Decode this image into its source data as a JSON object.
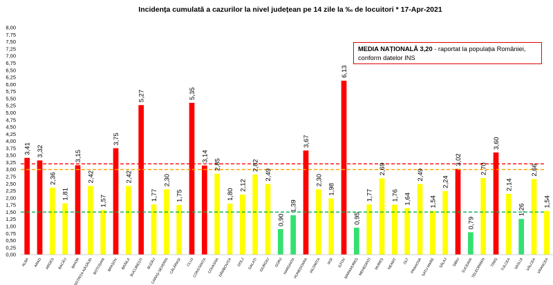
{
  "chart_data": {
    "type": "bar",
    "title": "Incidența cumulată a cazurilor la nivel județean pe 14 zile la ‰ de locuitori *  17-Apr-2021",
    "ylim": [
      0,
      8
    ],
    "yticks": [
      "0,00",
      "0,25",
      "0,50",
      "0,75",
      "1,00",
      "1,25",
      "1,50",
      "1,75",
      "2,00",
      "2,25",
      "2,50",
      "2,75",
      "3,00",
      "3,25",
      "3,50",
      "3,75",
      "4,00",
      "4,25",
      "4,50",
      "4,75",
      "5,00",
      "5,25",
      "5,50",
      "5,75",
      "6,00",
      "6,25",
      "6,50",
      "6,75",
      "7,00",
      "7,25",
      "7,50",
      "7,75",
      "8,00"
    ],
    "categories": [
      "ALBA",
      "ARAD",
      "ARGEȘ",
      "BACĂU",
      "BIHOR",
      "BISTRIȚA-NĂSĂUD",
      "BOTOȘANI",
      "BRAȘOV",
      "BRĂILA",
      "BUCUREȘTI",
      "BUZĂU",
      "CARAȘ-SEVERIN",
      "CĂLĂRAȘI",
      "CLUJ",
      "CONSTANȚA",
      "COVASNA",
      "DÂMBOVIȚA",
      "DOLJ",
      "GALAȚI",
      "GIURGIU",
      "GORJ",
      "HARGHITA",
      "HUNEDOARA",
      "IALOMIȚA",
      "IAȘI",
      "ILFOV",
      "MARAMUREȘ",
      "MEHEDINȚI",
      "MUREȘ",
      "NEAMȚ",
      "OLT",
      "PRAHOVA",
      "SATU MARE",
      "SĂLAJ",
      "SIBIU",
      "SUCEAVA",
      "TELEORMAN",
      "TIMIȘ",
      "TULCEA",
      "VASLUI",
      "VÂLCEA",
      "VRANCEA"
    ],
    "values": [
      3.41,
      3.32,
      2.36,
      1.81,
      3.15,
      2.42,
      1.57,
      3.75,
      2.42,
      5.27,
      1.77,
      2.3,
      1.75,
      5.35,
      3.14,
      2.85,
      1.8,
      2.12,
      2.82,
      2.49,
      0.9,
      1.39,
      3.67,
      2.3,
      1.98,
      6.13,
      0.95,
      1.77,
      2.69,
      1.76,
      1.64,
      2.49,
      1.54,
      2.24,
      3.02,
      0.79,
      2.7,
      3.6,
      2.14,
      1.26,
      2.66,
      1.54
    ],
    "value_labels": [
      "3,41",
      "3,32",
      "2,36",
      "1,81",
      "3,15",
      "2,42",
      "1,57",
      "3,75",
      "2,42",
      "5,27",
      "1,77",
      "2,30",
      "1,75",
      "5,35",
      "3,14",
      "2,85",
      "1,80",
      "2,12",
      "2,82",
      "2,49",
      "0,90",
      "1,39",
      "3,67",
      "2,30",
      "1,98",
      "6,13",
      "0,95",
      "1,77",
      "2,69",
      "1,76",
      "1,64",
      "2,49",
      "1,54",
      "2,24",
      "3,02",
      "0,79",
      "2,70",
      "3,60",
      "2,14",
      "1,26",
      "2,66",
      "1,54"
    ],
    "reference_lines": [
      {
        "value": 3.2,
        "color": "#ff0000",
        "style": "dashed"
      },
      {
        "value": 3.0,
        "color": "#ffa500",
        "style": "dashed"
      },
      {
        "value": 1.5,
        "color": "#00b050",
        "style": "dashed"
      }
    ],
    "colors": {
      "red": "#ff0000",
      "yellow": "#ffff00",
      "green": "#33e070"
    },
    "grid": false
  },
  "annotation": {
    "bold": "MEDIA NAȚIONALĂ  3,20",
    "rest_line1": " - raportat la populația României,",
    "line2": "conform datelor INS"
  }
}
